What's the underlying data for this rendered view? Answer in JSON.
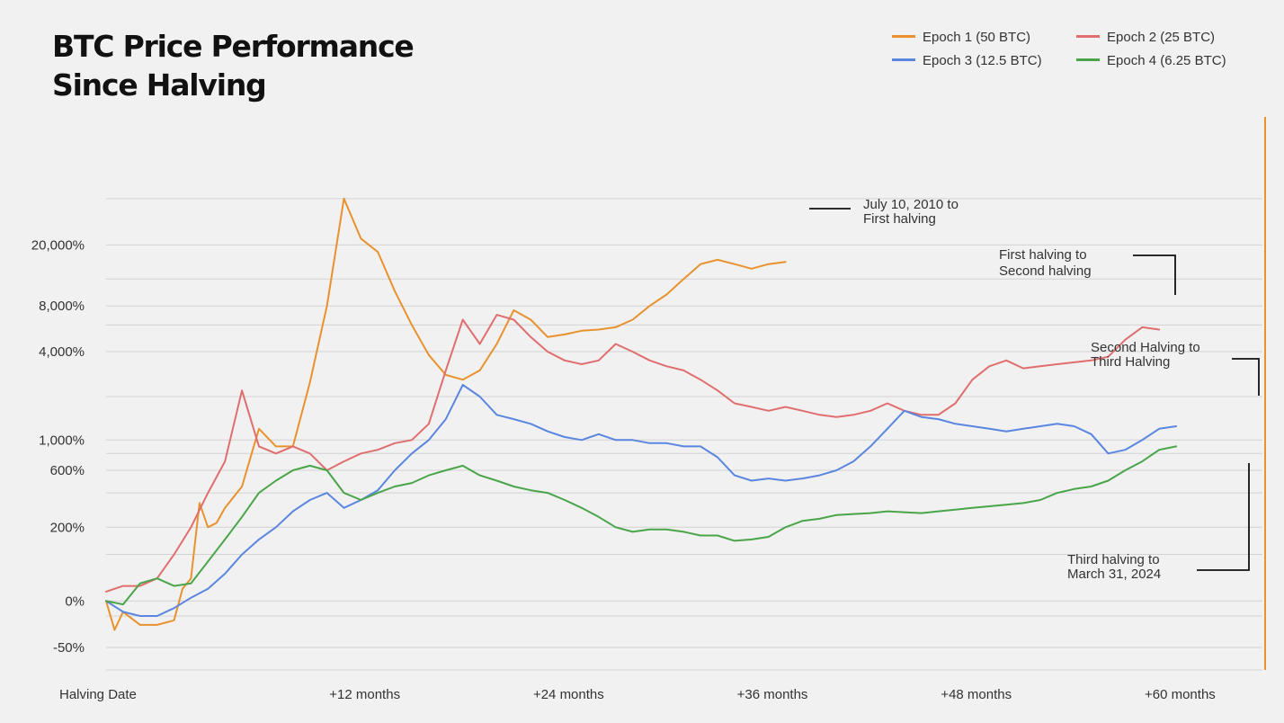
{
  "title_line1": "BTC Price Performance",
  "title_line2": "Since Halving",
  "legend": [
    {
      "label": "Epoch 1 (50 BTC)",
      "color": "#e8922f"
    },
    {
      "label": "Epoch 2 (25 BTC)",
      "color": "#e06e6e"
    },
    {
      "label": "Epoch 3 (12.5 BTC)",
      "color": "#5b86e0"
    },
    {
      "label": "Epoch 4 (6.25 BTC)",
      "color": "#4aa54a"
    }
  ],
  "annotations": {
    "epoch1": [
      "July 10, 2010 to",
      "First halving"
    ],
    "epoch2": [
      "First halving to",
      "Second halving"
    ],
    "epoch3": [
      "Second Halving to",
      "Third Halving"
    ],
    "epoch4": [
      "Third halving to",
      "March 31, 2024"
    ]
  },
  "chart_data": {
    "type": "line",
    "title": "BTC Price Performance Since Halving",
    "xlabel": "",
    "ylabel": "",
    "y_scale": "log (of 1 + return)",
    "grid": true,
    "legend_position": "top-right",
    "x_unit": "months since halving",
    "x_ticks": [
      {
        "value": 0,
        "label": "Halving Date"
      },
      {
        "value": 12,
        "label": "+12 months"
      },
      {
        "value": 24,
        "label": "+24 months"
      },
      {
        "value": 36,
        "label": "+36 months"
      },
      {
        "value": 48,
        "label": "+48 months"
      },
      {
        "value": 60,
        "label": "+60 months"
      }
    ],
    "y_ticks": [
      {
        "value": -50,
        "label": "-50%"
      },
      {
        "value": 0,
        "label": "0%"
      },
      {
        "value": 200,
        "label": "200%"
      },
      {
        "value": 600,
        "label": "600%"
      },
      {
        "value": 1000,
        "label": "1,000%"
      },
      {
        "value": 4000,
        "label": "4,000%"
      },
      {
        "value": 8000,
        "label": "8,000%"
      },
      {
        "value": 20000,
        "label": "20,000%"
      }
    ],
    "series": [
      {
        "name": "Epoch 1 (50 BTC)",
        "color": "#e8922f",
        "points": [
          [
            0,
            0
          ],
          [
            0.5,
            -35
          ],
          [
            1,
            -15
          ],
          [
            2,
            -30
          ],
          [
            3,
            -30
          ],
          [
            4,
            -25
          ],
          [
            4.5,
            20
          ],
          [
            5,
            40
          ],
          [
            5.5,
            330
          ],
          [
            6,
            200
          ],
          [
            6.5,
            220
          ],
          [
            7,
            300
          ],
          [
            8,
            450
          ],
          [
            9,
            1200
          ],
          [
            10,
            900
          ],
          [
            11,
            900
          ],
          [
            12,
            2500
          ],
          [
            13,
            8000
          ],
          [
            14,
            40000
          ],
          [
            15,
            22000
          ],
          [
            16,
            18000
          ],
          [
            17,
            10000
          ],
          [
            18,
            6000
          ],
          [
            19,
            3800
          ],
          [
            20,
            2800
          ],
          [
            21,
            2600
          ],
          [
            22,
            3000
          ],
          [
            23,
            4500
          ],
          [
            24,
            7500
          ],
          [
            25,
            6500
          ],
          [
            26,
            5000
          ],
          [
            27,
            5200
          ],
          [
            28,
            5500
          ],
          [
            29,
            5600
          ],
          [
            30,
            5800
          ],
          [
            31,
            6500
          ],
          [
            32,
            8000
          ],
          [
            33,
            9500
          ],
          [
            34,
            12000
          ],
          [
            35,
            15000
          ],
          [
            36,
            16000
          ],
          [
            37,
            15000
          ],
          [
            38,
            14000
          ],
          [
            39,
            15000
          ],
          [
            40,
            15500
          ]
        ]
      },
      {
        "name": "Epoch 2 (25 BTC)",
        "color": "#e06e6e",
        "points": [
          [
            0,
            15
          ],
          [
            1,
            25
          ],
          [
            2,
            25
          ],
          [
            3,
            40
          ],
          [
            4,
            100
          ],
          [
            5,
            200
          ],
          [
            6,
            400
          ],
          [
            7,
            700
          ],
          [
            8,
            2200
          ],
          [
            9,
            900
          ],
          [
            10,
            800
          ],
          [
            11,
            900
          ],
          [
            12,
            800
          ],
          [
            13,
            600
          ],
          [
            14,
            700
          ],
          [
            15,
            800
          ],
          [
            16,
            850
          ],
          [
            17,
            950
          ],
          [
            18,
            1000
          ],
          [
            19,
            1300
          ],
          [
            20,
            3000
          ],
          [
            21,
            6500
          ],
          [
            22,
            4500
          ],
          [
            23,
            7000
          ],
          [
            24,
            6500
          ],
          [
            25,
            5000
          ],
          [
            26,
            4000
          ],
          [
            27,
            3500
          ],
          [
            28,
            3300
          ],
          [
            29,
            3500
          ],
          [
            30,
            4500
          ],
          [
            31,
            4000
          ],
          [
            32,
            3500
          ],
          [
            33,
            3200
          ],
          [
            34,
            3000
          ],
          [
            35,
            2600
          ],
          [
            36,
            2200
          ],
          [
            37,
            1800
          ],
          [
            38,
            1700
          ],
          [
            39,
            1600
          ],
          [
            40,
            1700
          ],
          [
            41,
            1600
          ],
          [
            42,
            1500
          ],
          [
            43,
            1450
          ],
          [
            44,
            1500
          ],
          [
            45,
            1600
          ],
          [
            46,
            1800
          ],
          [
            47,
            1600
          ],
          [
            48,
            1500
          ],
          [
            49,
            1500
          ],
          [
            50,
            1800
          ],
          [
            51,
            2600
          ],
          [
            52,
            3200
          ],
          [
            53,
            3500
          ],
          [
            54,
            3100
          ],
          [
            55,
            3200
          ],
          [
            56,
            3300
          ],
          [
            57,
            3400
          ],
          [
            58,
            3500
          ],
          [
            59,
            3700
          ],
          [
            60,
            4800
          ],
          [
            61,
            5800
          ],
          [
            62,
            5600
          ]
        ]
      },
      {
        "name": "Epoch 3 (12.5 BTC)",
        "color": "#5b86e0",
        "points": [
          [
            0,
            0
          ],
          [
            1,
            -15
          ],
          [
            2,
            -20
          ],
          [
            3,
            -20
          ],
          [
            4,
            -10
          ],
          [
            5,
            5
          ],
          [
            6,
            20
          ],
          [
            7,
            50
          ],
          [
            8,
            100
          ],
          [
            9,
            150
          ],
          [
            10,
            200
          ],
          [
            11,
            280
          ],
          [
            12,
            350
          ],
          [
            13,
            400
          ],
          [
            14,
            300
          ],
          [
            15,
            350
          ],
          [
            16,
            420
          ],
          [
            17,
            600
          ],
          [
            18,
            800
          ],
          [
            19,
            1000
          ],
          [
            20,
            1400
          ],
          [
            21,
            2400
          ],
          [
            22,
            2000
          ],
          [
            23,
            1500
          ],
          [
            24,
            1400
          ],
          [
            25,
            1300
          ],
          [
            26,
            1150
          ],
          [
            27,
            1050
          ],
          [
            28,
            1000
          ],
          [
            29,
            1100
          ],
          [
            30,
            1000
          ],
          [
            31,
            1000
          ],
          [
            32,
            950
          ],
          [
            33,
            950
          ],
          [
            34,
            900
          ],
          [
            35,
            900
          ],
          [
            36,
            750
          ],
          [
            37,
            550
          ],
          [
            38,
            500
          ],
          [
            39,
            520
          ],
          [
            40,
            500
          ],
          [
            41,
            520
          ],
          [
            42,
            550
          ],
          [
            43,
            600
          ],
          [
            44,
            700
          ],
          [
            45,
            900
          ],
          [
            46,
            1200
          ],
          [
            47,
            1600
          ],
          [
            48,
            1450
          ],
          [
            49,
            1400
          ],
          [
            50,
            1300
          ],
          [
            51,
            1250
          ],
          [
            52,
            1200
          ],
          [
            53,
            1150
          ],
          [
            54,
            1200
          ],
          [
            55,
            1250
          ],
          [
            56,
            1300
          ],
          [
            57,
            1250
          ],
          [
            58,
            1100
          ],
          [
            59,
            800
          ],
          [
            60,
            850
          ],
          [
            61,
            1000
          ],
          [
            62,
            1200
          ],
          [
            63,
            1250
          ]
        ]
      },
      {
        "name": "Epoch 4 (6.25 BTC)",
        "color": "#4aa54a",
        "points": [
          [
            0,
            0
          ],
          [
            1,
            -5
          ],
          [
            2,
            30
          ],
          [
            3,
            40
          ],
          [
            4,
            25
          ],
          [
            5,
            30
          ],
          [
            6,
            80
          ],
          [
            7,
            150
          ],
          [
            8,
            250
          ],
          [
            9,
            400
          ],
          [
            10,
            500
          ],
          [
            11,
            600
          ],
          [
            12,
            650
          ],
          [
            13,
            600
          ],
          [
            14,
            400
          ],
          [
            15,
            350
          ],
          [
            16,
            400
          ],
          [
            17,
            450
          ],
          [
            18,
            480
          ],
          [
            19,
            550
          ],
          [
            20,
            600
          ],
          [
            21,
            650
          ],
          [
            22,
            550
          ],
          [
            23,
            500
          ],
          [
            24,
            450
          ],
          [
            25,
            420
          ],
          [
            26,
            400
          ],
          [
            27,
            350
          ],
          [
            28,
            300
          ],
          [
            29,
            250
          ],
          [
            30,
            200
          ],
          [
            31,
            180
          ],
          [
            32,
            190
          ],
          [
            33,
            190
          ],
          [
            34,
            180
          ],
          [
            35,
            165
          ],
          [
            36,
            165
          ],
          [
            37,
            145
          ],
          [
            38,
            150
          ],
          [
            39,
            160
          ],
          [
            40,
            200
          ],
          [
            41,
            230
          ],
          [
            42,
            240
          ],
          [
            43,
            260
          ],
          [
            44,
            265
          ],
          [
            45,
            270
          ],
          [
            46,
            280
          ],
          [
            47,
            275
          ],
          [
            48,
            270
          ],
          [
            49,
            280
          ],
          [
            50,
            290
          ],
          [
            51,
            300
          ],
          [
            52,
            310
          ],
          [
            53,
            320
          ],
          [
            54,
            330
          ],
          [
            55,
            350
          ],
          [
            56,
            400
          ],
          [
            57,
            430
          ],
          [
            58,
            450
          ],
          [
            59,
            500
          ],
          [
            60,
            600
          ],
          [
            61,
            700
          ],
          [
            62,
            850
          ],
          [
            63,
            900
          ]
        ]
      }
    ]
  }
}
